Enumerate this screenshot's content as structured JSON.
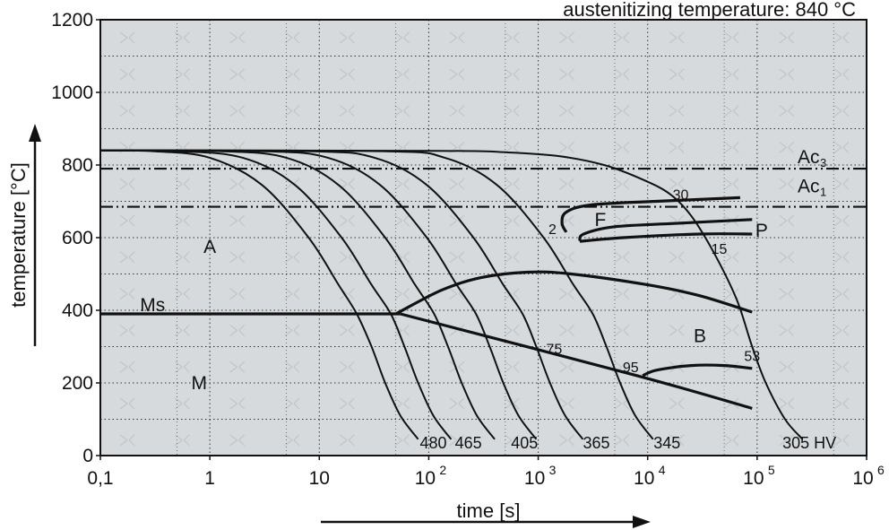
{
  "chart_data": {
    "type": "line",
    "title": "austenitizing temperature: 840 °C",
    "xlabel": "time [s]",
    "ylabel": "temperature [°C]",
    "x_scale": "log",
    "xlim": [
      0.1,
      1000000
    ],
    "ylim": [
      0,
      1200
    ],
    "grid": true,
    "x_ticks": [
      {
        "value": 0.1,
        "base": "0,1",
        "exp": ""
      },
      {
        "value": 1,
        "base": "1",
        "exp": ""
      },
      {
        "value": 10,
        "base": "10",
        "exp": ""
      },
      {
        "value": 100,
        "base": "10",
        "exp": "2"
      },
      {
        "value": 1000,
        "base": "10",
        "exp": "3"
      },
      {
        "value": 10000,
        "base": "10",
        "exp": "4"
      },
      {
        "value": 100000,
        "base": "10",
        "exp": "5"
      },
      {
        "value": 1000000,
        "base": "10",
        "exp": "6"
      }
    ],
    "y_ticks": [
      {
        "value": 0,
        "label": "0"
      },
      {
        "value": 200,
        "label": "200"
      },
      {
        "value": 400,
        "label": "400"
      },
      {
        "value": 600,
        "label": "600"
      },
      {
        "value": 800,
        "label": "800"
      },
      {
        "value": 1000,
        "label": "1000"
      },
      {
        "value": 1200,
        "label": "1200"
      }
    ],
    "reference_lines": [
      {
        "temperature": 790,
        "label": "Ac",
        "sub": "3"
      },
      {
        "temperature": 685,
        "label": "Ac",
        "sub": "1"
      }
    ],
    "cooling_curves": [
      {
        "hardness": "480",
        "points": [
          [
            0.1,
            840
          ],
          [
            0.3,
            838
          ],
          [
            1,
            820
          ],
          [
            3,
            745
          ],
          [
            8,
            600
          ],
          [
            15,
            470
          ],
          [
            22,
            390
          ],
          [
            30,
            300
          ],
          [
            40,
            200
          ],
          [
            55,
            110
          ],
          [
            80,
            45
          ]
        ]
      },
      {
        "hardness": "465",
        "points": [
          [
            0.1,
            840
          ],
          [
            0.5,
            838
          ],
          [
            2,
            820
          ],
          [
            6,
            745
          ],
          [
            16,
            600
          ],
          [
            30,
            470
          ],
          [
            45,
            390
          ],
          [
            60,
            300
          ],
          [
            80,
            200
          ],
          [
            110,
            110
          ],
          [
            160,
            45
          ]
        ]
      },
      {
        "hardness": "405",
        "points": [
          [
            0.1,
            840
          ],
          [
            1.25,
            838
          ],
          [
            5,
            820
          ],
          [
            15,
            745
          ],
          [
            40,
            600
          ],
          [
            75,
            470
          ],
          [
            112,
            390
          ],
          [
            150,
            300
          ],
          [
            200,
            200
          ],
          [
            275,
            110
          ],
          [
            400,
            45
          ]
        ]
      },
      {
        "hardness": "365",
        "points": [
          [
            0.1,
            840
          ],
          [
            3,
            838
          ],
          [
            12,
            820
          ],
          [
            36,
            745
          ],
          [
            96,
            600
          ],
          [
            180,
            470
          ],
          [
            270,
            390
          ],
          [
            360,
            300
          ],
          [
            480,
            200
          ],
          [
            660,
            110
          ],
          [
            960,
            45
          ]
        ]
      },
      {
        "hardness": "345",
        "points": [
          [
            0.1,
            840
          ],
          [
            8,
            838
          ],
          [
            32,
            820
          ],
          [
            96,
            745
          ],
          [
            256,
            600
          ],
          [
            480,
            470
          ],
          [
            720,
            390
          ],
          [
            960,
            300
          ],
          [
            1280,
            200
          ],
          [
            1760,
            110
          ],
          [
            2560,
            45
          ]
        ]
      },
      {
        "hardness": "",
        "points": [
          [
            0.1,
            840
          ],
          [
            35,
            838
          ],
          [
            140,
            820
          ],
          [
            420,
            745
          ],
          [
            1120,
            600
          ],
          [
            2100,
            470
          ],
          [
            3150,
            390
          ],
          [
            4200,
            300
          ],
          [
            5600,
            200
          ],
          [
            7700,
            110
          ],
          [
            11200,
            45
          ]
        ]
      },
      {
        "hardness": "",
        "points": [
          [
            0.1,
            840
          ],
          [
            120,
            839
          ],
          [
            500,
            835
          ],
          [
            1500,
            825
          ],
          [
            4000,
            800
          ],
          [
            9000,
            760
          ],
          [
            16000,
            720
          ],
          [
            25000,
            660
          ],
          [
            40000,
            560
          ],
          [
            65000,
            430
          ],
          [
            90000,
            300
          ],
          [
            120000,
            200
          ],
          [
            180000,
            100
          ],
          [
            260000,
            45
          ]
        ]
      }
    ],
    "curve_labels": [
      {
        "text": "480",
        "x": 110,
        "y": 45
      },
      {
        "text": "465",
        "x": 230,
        "y": 45
      },
      {
        "text": "405",
        "x": 750,
        "y": 45
      },
      {
        "text": "365",
        "x": 3400,
        "y": 45
      },
      {
        "text": "345",
        "x": 15000,
        "y": 45
      },
      {
        "text": "305 HV",
        "x": 300000,
        "y": 45
      }
    ],
    "transformation_lines": [
      {
        "name": "Ms",
        "points": [
          [
            0.1,
            390
          ],
          [
            55,
            390
          ]
        ]
      },
      {
        "name": "Ms-drop",
        "points": [
          [
            55,
            390
          ],
          [
            8000,
            220
          ],
          [
            90000,
            130
          ]
        ]
      },
      {
        "name": "bainite-start",
        "points": [
          [
            50,
            390
          ],
          [
            130,
            455
          ],
          [
            300,
            490
          ],
          [
            800,
            505
          ],
          [
            2000,
            500
          ],
          [
            10000,
            470
          ],
          [
            30000,
            440
          ],
          [
            90000,
            395
          ]
        ]
      },
      {
        "name": "ferrite-start",
        "points": [
          [
            1800,
            615
          ],
          [
            1650,
            640
          ],
          [
            1800,
            670
          ],
          [
            3000,
            690
          ],
          [
            12000,
            700
          ],
          [
            70000,
            710
          ]
        ]
      },
      {
        "name": "pearlite-upper",
        "points": [
          [
            2400,
            590
          ],
          [
            2600,
            610
          ],
          [
            5000,
            630
          ],
          [
            20000,
            640
          ],
          [
            90000,
            650
          ]
        ]
      },
      {
        "name": "pearlite-lower",
        "points": [
          [
            2400,
            590
          ],
          [
            6000,
            600
          ],
          [
            30000,
            610
          ],
          [
            90000,
            610
          ]
        ]
      },
      {
        "name": "bainite-end",
        "points": [
          [
            9000,
            220
          ],
          [
            12000,
            235
          ],
          [
            25000,
            248
          ],
          [
            50000,
            248
          ],
          [
            90000,
            240
          ]
        ]
      }
    ],
    "phase_labels": [
      {
        "text": "A",
        "x": 1,
        "y": 575
      },
      {
        "text": "M",
        "x": 0.8,
        "y": 200
      },
      {
        "text": "Ms",
        "x": 0.3,
        "y": 415
      },
      {
        "text": "F",
        "x": 3700,
        "y": 650
      },
      {
        "text": "P",
        "x": 110000,
        "y": 620
      },
      {
        "text": "B",
        "x": 30000,
        "y": 330
      }
    ],
    "percent_labels": [
      {
        "text": "30",
        "x": 20000,
        "y": 720
      },
      {
        "text": "2",
        "x": 1350,
        "y": 625
      },
      {
        "text": "15",
        "x": 45000,
        "y": 570
      },
      {
        "text": "75",
        "x": 1400,
        "y": 295
      },
      {
        "text": "95",
        "x": 7000,
        "y": 245
      },
      {
        "text": "53",
        "x": 90000,
        "y": 275
      }
    ]
  }
}
